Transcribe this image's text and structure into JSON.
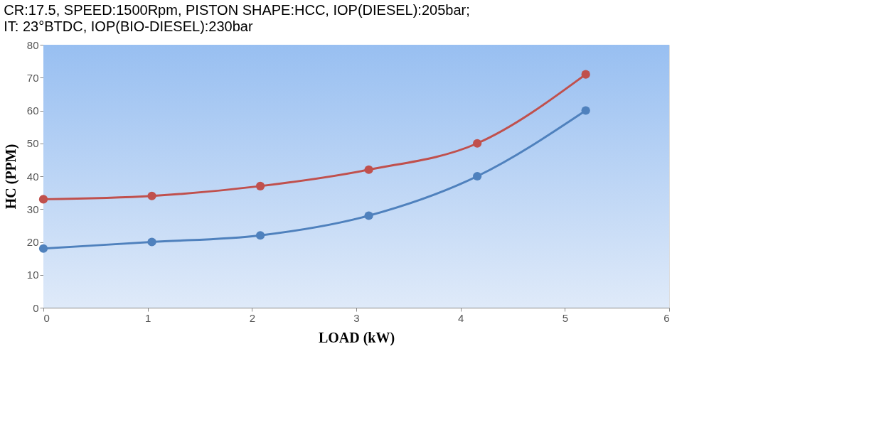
{
  "chart_data": {
    "type": "line",
    "title": "CR:17.5, SPEED:1500Rpm, PISTON SHAPE:HCC,  IOP(DIESEL):205bar;",
    "subtitle": "IT: 23°BTDC,  IOP(BIO-DIESEL):230bar",
    "xlabel": "LOAD (kW)",
    "ylabel": "HC (PPM)",
    "x": [
      0,
      1.04,
      2.08,
      3.12,
      4.16,
      5.2
    ],
    "series": [
      {
        "color": "#c0504d",
        "values": [
          33,
          34,
          37,
          42,
          50,
          71
        ]
      },
      {
        "color": "#4f81bd",
        "values": [
          18,
          20,
          22,
          28,
          40,
          60
        ]
      }
    ],
    "xlim": [
      0,
      6
    ],
    "xticks": [
      0,
      1,
      2,
      3,
      4,
      5,
      6
    ],
    "ylim": [
      0,
      80
    ],
    "yticks": [
      0,
      10,
      20,
      30,
      40,
      50,
      60,
      70,
      80
    ],
    "grid": false,
    "legend": false,
    "marker": "circle",
    "line_style": "solid"
  }
}
